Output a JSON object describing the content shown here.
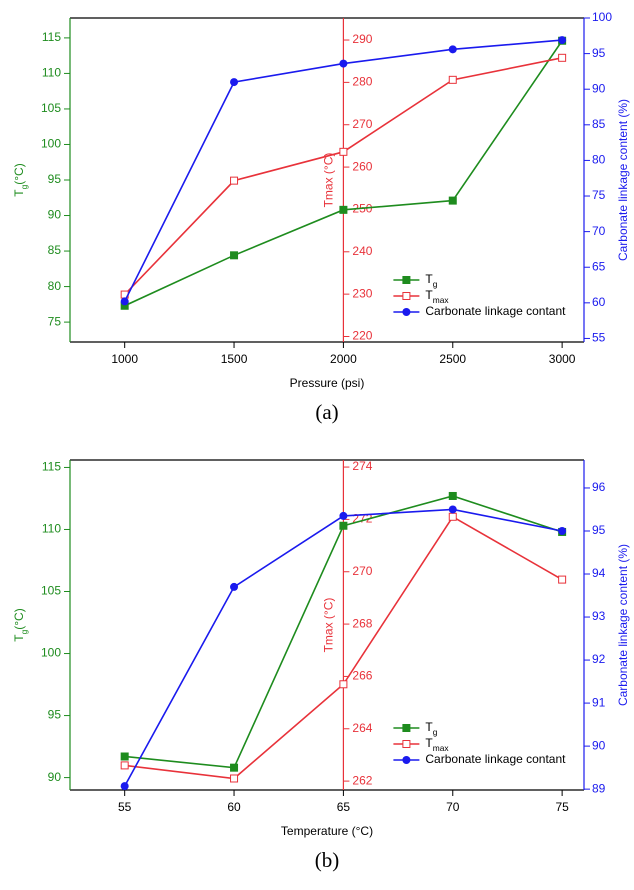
{
  "chart_data": [
    {
      "type": "line",
      "caption": "(a)",
      "xlabel": "Pressure (psi)",
      "ylabel": "Tg(°C)",
      "y2label": "Tmax (°C)",
      "y3label": "Carbonate linkage content (%)",
      "x": [
        1000,
        1500,
        2000,
        2500,
        3000
      ],
      "xlim": [
        750,
        3100
      ],
      "xticks": [
        1000,
        1500,
        2000,
        2500,
        3000
      ],
      "ylim": [
        72.2,
        117.8
      ],
      "yticks": [
        75,
        80,
        85,
        90,
        95,
        100,
        105,
        110,
        115
      ],
      "y2lim": [
        218.7,
        295.2
      ],
      "y2ticks": [
        220,
        230,
        240,
        250,
        260,
        270,
        280,
        290
      ],
      "y3lim": [
        54.5,
        100
      ],
      "y3ticks": [
        55,
        60,
        65,
        70,
        75,
        80,
        85,
        90,
        95,
        100
      ],
      "legend": "lower right",
      "series": [
        {
          "name": "Tg",
          "color": "#1e8c1e",
          "marker": "filled-square",
          "axis": "y",
          "values": [
            77.3,
            84.4,
            90.8,
            92.1,
            114.6
          ]
        },
        {
          "name": "Tmax",
          "color": "#e8323a",
          "marker": "open-square",
          "axis": "y2",
          "values": [
            229.9,
            256.8,
            263.6,
            280.6,
            285.8
          ]
        },
        {
          "name": "Carbonate linkage contant",
          "color": "#1a1aee",
          "marker": "filled-circle",
          "axis": "y3",
          "values": [
            60.2,
            91.0,
            93.6,
            95.6,
            96.9
          ]
        }
      ]
    },
    {
      "type": "line",
      "caption": "(b)",
      "xlabel": "Temperature (°C)",
      "ylabel": "Tg(°C)",
      "y2label": "Tmax (°C)",
      "y3label": "Carbonate linkage content (%)",
      "x": [
        55,
        60,
        65,
        70,
        75
      ],
      "xlim": [
        52.5,
        76
      ],
      "xticks": [
        55,
        60,
        65,
        70,
        75
      ],
      "ylim": [
        89,
        115.6
      ],
      "yticks": [
        90,
        95,
        100,
        105,
        110,
        115
      ],
      "y2lim": [
        261.66,
        274.27
      ],
      "y2ticks": [
        262,
        264,
        266,
        268,
        270,
        272,
        274
      ],
      "y3lim": [
        88.98,
        96.65
      ],
      "y3ticks": [
        89,
        90,
        91,
        92,
        93,
        94,
        95,
        96
      ],
      "legend": "lower right",
      "series": [
        {
          "name": "Tg",
          "color": "#1e8c1e",
          "marker": "filled-square",
          "axis": "y",
          "values": [
            91.7,
            90.8,
            110.3,
            112.7,
            109.8
          ]
        },
        {
          "name": "Tmax",
          "color": "#e8323a",
          "marker": "open-square",
          "axis": "y2",
          "values": [
            262.6,
            262.1,
            265.7,
            272.1,
            269.7
          ]
        },
        {
          "name": "Carbonate linkage contant",
          "color": "#1a1aee",
          "marker": "filled-circle",
          "axis": "y3",
          "values": [
            89.07,
            93.7,
            95.35,
            95.5,
            95.0
          ]
        }
      ]
    }
  ]
}
